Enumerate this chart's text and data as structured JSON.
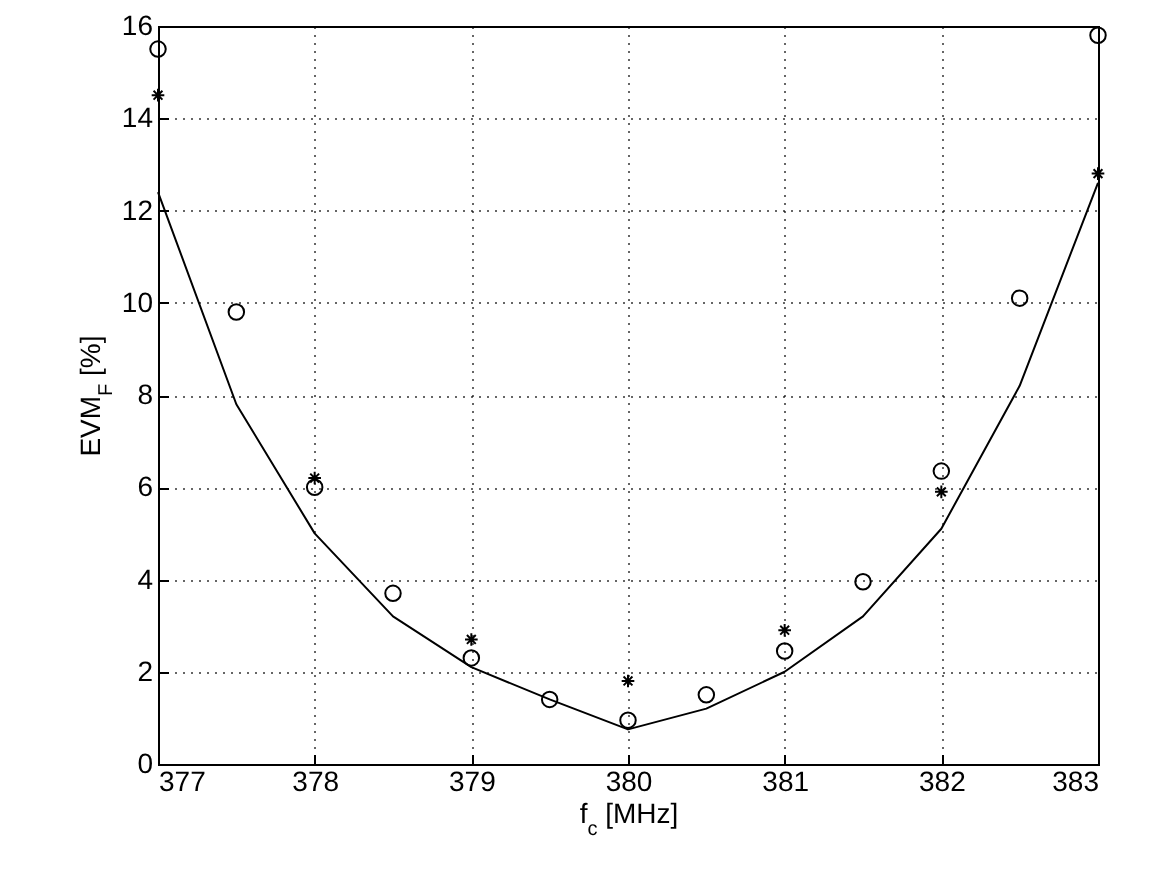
{
  "chart_data": {
    "type": "line",
    "xlabel": "f$_{c}$ [MHz]",
    "ylabel": "EVM$_{F}$ [%]",
    "xlim": [
      377,
      383
    ],
    "xticks": [
      377,
      378,
      379,
      380,
      381,
      382,
      383
    ],
    "ylim": [
      0,
      16
    ],
    "yticks": [
      0,
      2,
      4,
      6,
      8,
      10,
      12,
      14,
      16
    ],
    "grid": true,
    "series": [
      {
        "color": "#000000",
        "marker": "none",
        "x": [
          377,
          377.5,
          378,
          378.5,
          379,
          379.5,
          380,
          380.5,
          381,
          381.5,
          382,
          382.5,
          383
        ],
        "values": [
          12.4,
          7.8,
          5.0,
          3.2,
          2.1,
          1.4,
          0.75,
          1.2,
          2.0,
          3.2,
          5.1,
          8.2,
          12.6
        ]
      },
      {
        "type": "scatter",
        "color": "#000000",
        "marker": "circle",
        "x": [
          377,
          377.5,
          378,
          378.5,
          379,
          379.5,
          380,
          380.5,
          381,
          381.5,
          382,
          382.5,
          383
        ],
        "values": [
          15.5,
          9.8,
          6.0,
          3.7,
          2.3,
          1.4,
          0.95,
          1.5,
          2.45,
          3.95,
          6.35,
          10.1,
          15.8
        ]
      },
      {
        "type": "scatter",
        "color": "#000000",
        "marker": "cross",
        "x": [
          377,
          378,
          379,
          380,
          381,
          382,
          383
        ],
        "values": [
          14.5,
          6.2,
          2.7,
          1.8,
          2.9,
          5.9,
          12.8
        ]
      }
    ]
  }
}
